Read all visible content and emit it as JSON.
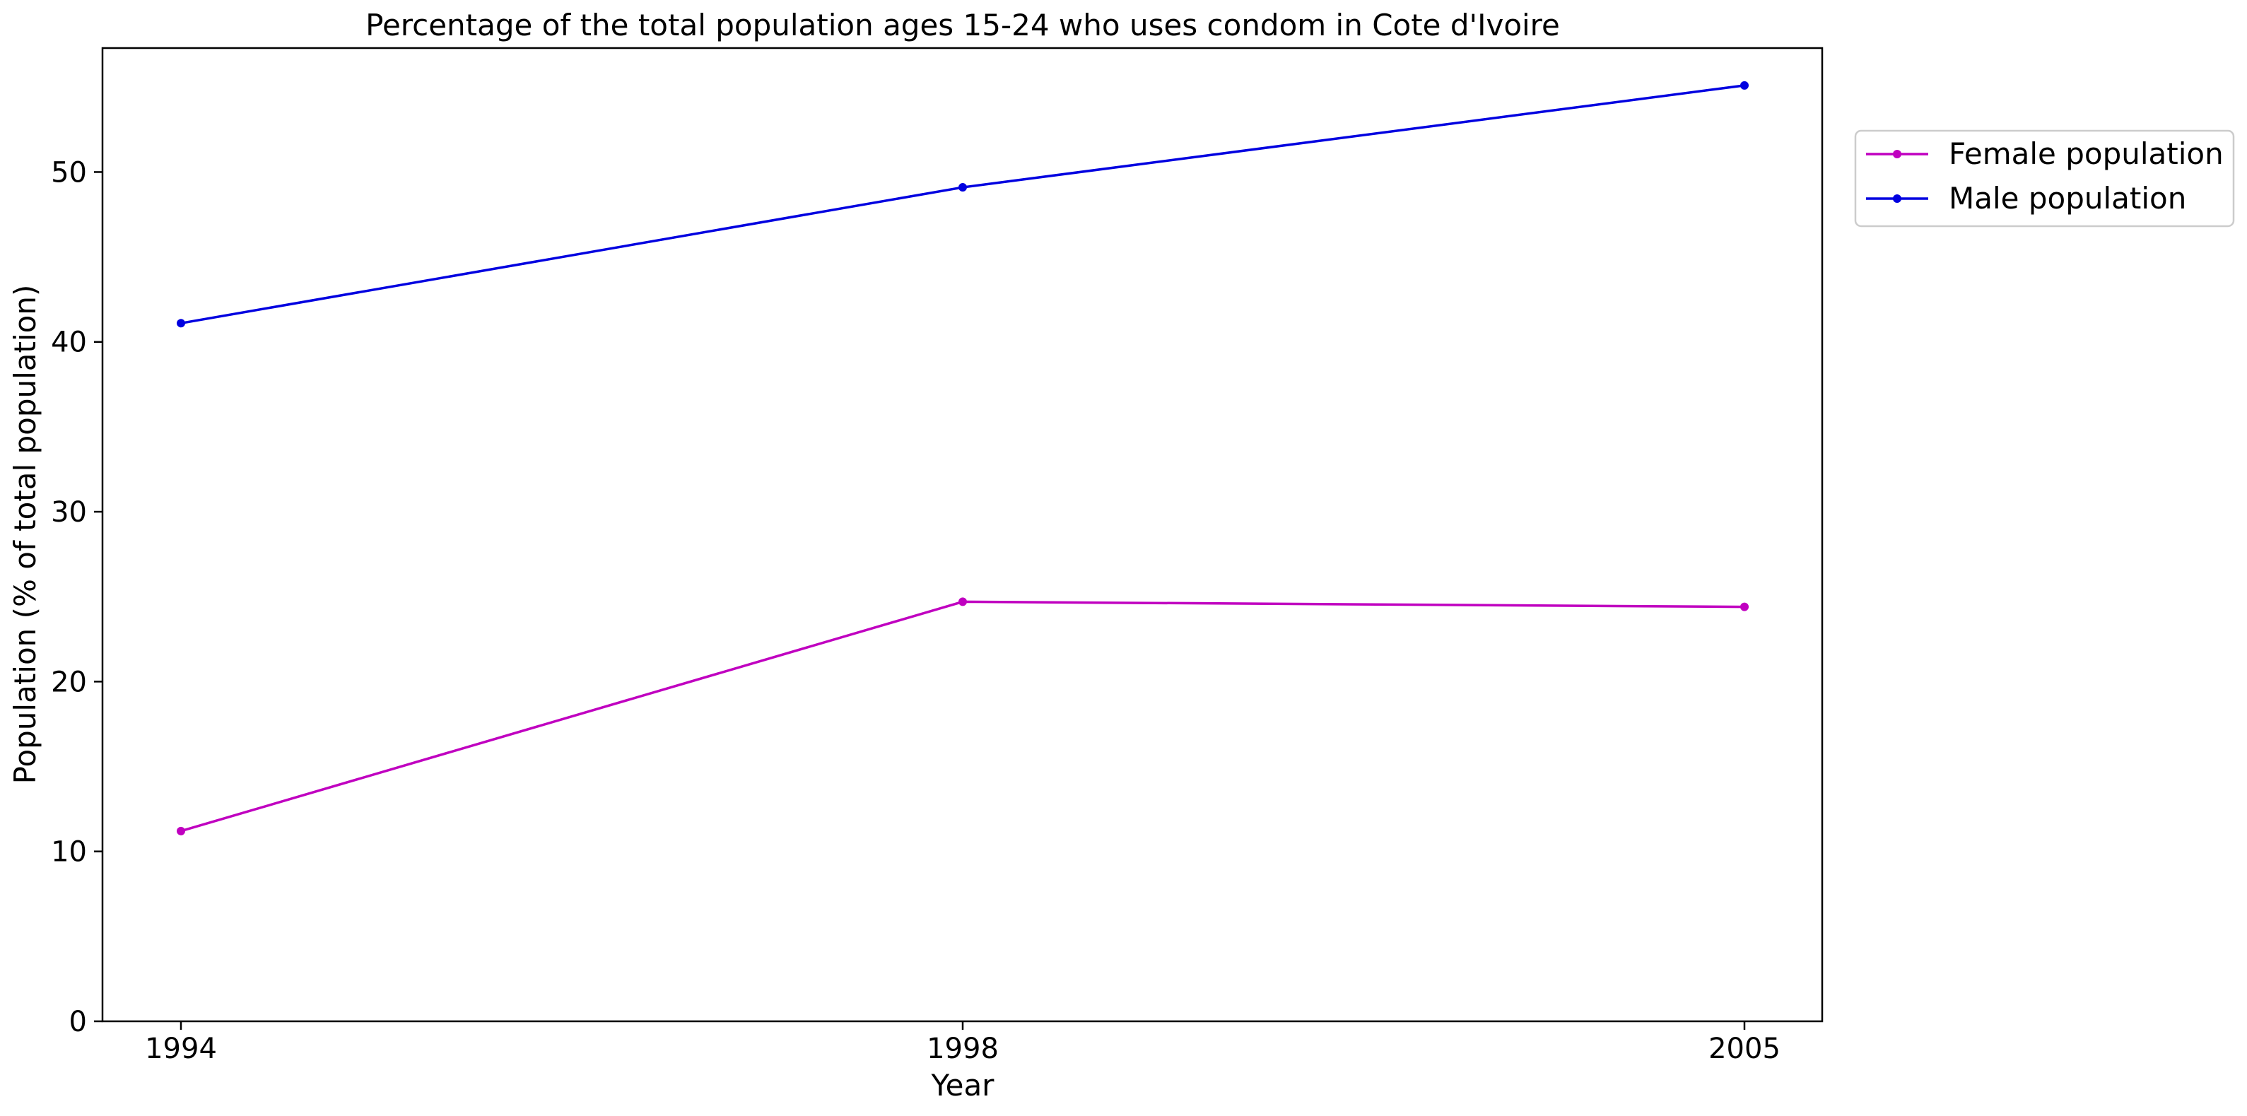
{
  "chart_data": {
    "type": "line",
    "title": "Percentage of the total population ages 15-24 who uses condom in Cote d'Ivoire",
    "xlabel": "Year",
    "ylabel": "Population (% of total population)",
    "categories": [
      "1994",
      "1998",
      "2005"
    ],
    "ylim": [
      0,
      57.3
    ],
    "yticks": [
      0,
      10,
      20,
      30,
      40,
      50
    ],
    "grid": false,
    "legend_position": "right-outside-top",
    "series": [
      {
        "name": "Female population",
        "color": "#c000c0",
        "values": [
          11.2,
          24.7,
          24.4
        ]
      },
      {
        "name": "Male population",
        "color": "#0000e0",
        "values": [
          41.1,
          49.1,
          55.1
        ]
      }
    ]
  }
}
